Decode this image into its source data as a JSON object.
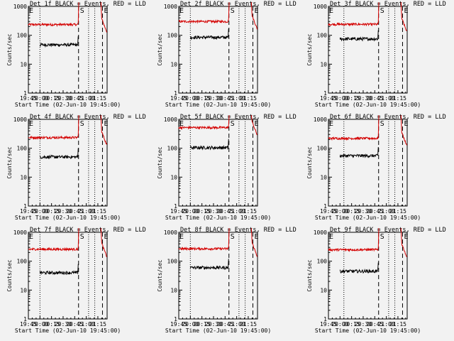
{
  "x_axis": {
    "label": "Start Time (02-Jun-10 19:45:00)",
    "tick_labels": [
      "19:45",
      "20:00",
      "20:15",
      "20:30",
      "20:45",
      "21:00",
      "21:15"
    ],
    "tick_minutes": [
      0,
      15,
      30,
      45,
      60,
      75,
      90
    ],
    "range_minutes": [
      0,
      102
    ]
  },
  "y_axis": {
    "label": "Counts/sec",
    "scale": "log",
    "range": [
      1,
      1000
    ],
    "tick_labels": [
      "1",
      "10",
      "100",
      "1000"
    ]
  },
  "series_colors": {
    "events": "#000000",
    "lld": "#d40000"
  },
  "markers": {
    "S": {
      "label": "S",
      "minute": 65,
      "style": "dashed"
    },
    "E": {
      "label": "E",
      "minute": 96,
      "style": "dashed"
    }
  },
  "chart_data": [
    {
      "type": "line",
      "title": "Det 1f BLACK = Events, RED = LLD",
      "black_level": 47,
      "red_level": 235,
      "dotted_minutes": [
        15,
        78,
        86
      ]
    },
    {
      "type": "line",
      "title": "Det 2f BLACK = Events, RED = LLD",
      "black_level": 85,
      "red_level": 300,
      "dotted_minutes": [
        15,
        78,
        86
      ]
    },
    {
      "type": "line",
      "title": "Det 3f BLACK = Events, RED = LLD",
      "black_level": 75,
      "red_level": 240,
      "dotted_minutes": [
        20,
        78,
        86
      ]
    },
    {
      "type": "line",
      "title": "Det 4f BLACK = Events, RED = LLD",
      "black_level": 50,
      "red_level": 235,
      "dotted_minutes": [
        15,
        78,
        86
      ]
    },
    {
      "type": "line",
      "title": "Det 5f BLACK = Events, RED = LLD",
      "black_level": 105,
      "red_level": 520,
      "dotted_minutes": [
        15,
        78,
        86
      ]
    },
    {
      "type": "line",
      "title": "Det 6f BLACK = Events, RED = LLD",
      "black_level": 55,
      "red_level": 220,
      "dotted_minutes": [
        20,
        78,
        86
      ]
    },
    {
      "type": "line",
      "title": "Det 7f BLACK = Events, RED = LLD",
      "black_level": 40,
      "red_level": 260,
      "dotted_minutes": [
        15,
        78,
        86
      ]
    },
    {
      "type": "line",
      "title": "Det 8f BLACK = Events, RED = LLD",
      "black_level": 60,
      "red_level": 270,
      "dotted_minutes": [
        15,
        78,
        86
      ]
    },
    {
      "type": "line",
      "title": "Det 9f BLACK = Events, RED = LLD",
      "black_level": 45,
      "red_level": 250,
      "dotted_minutes": [
        20,
        78,
        86
      ]
    }
  ]
}
